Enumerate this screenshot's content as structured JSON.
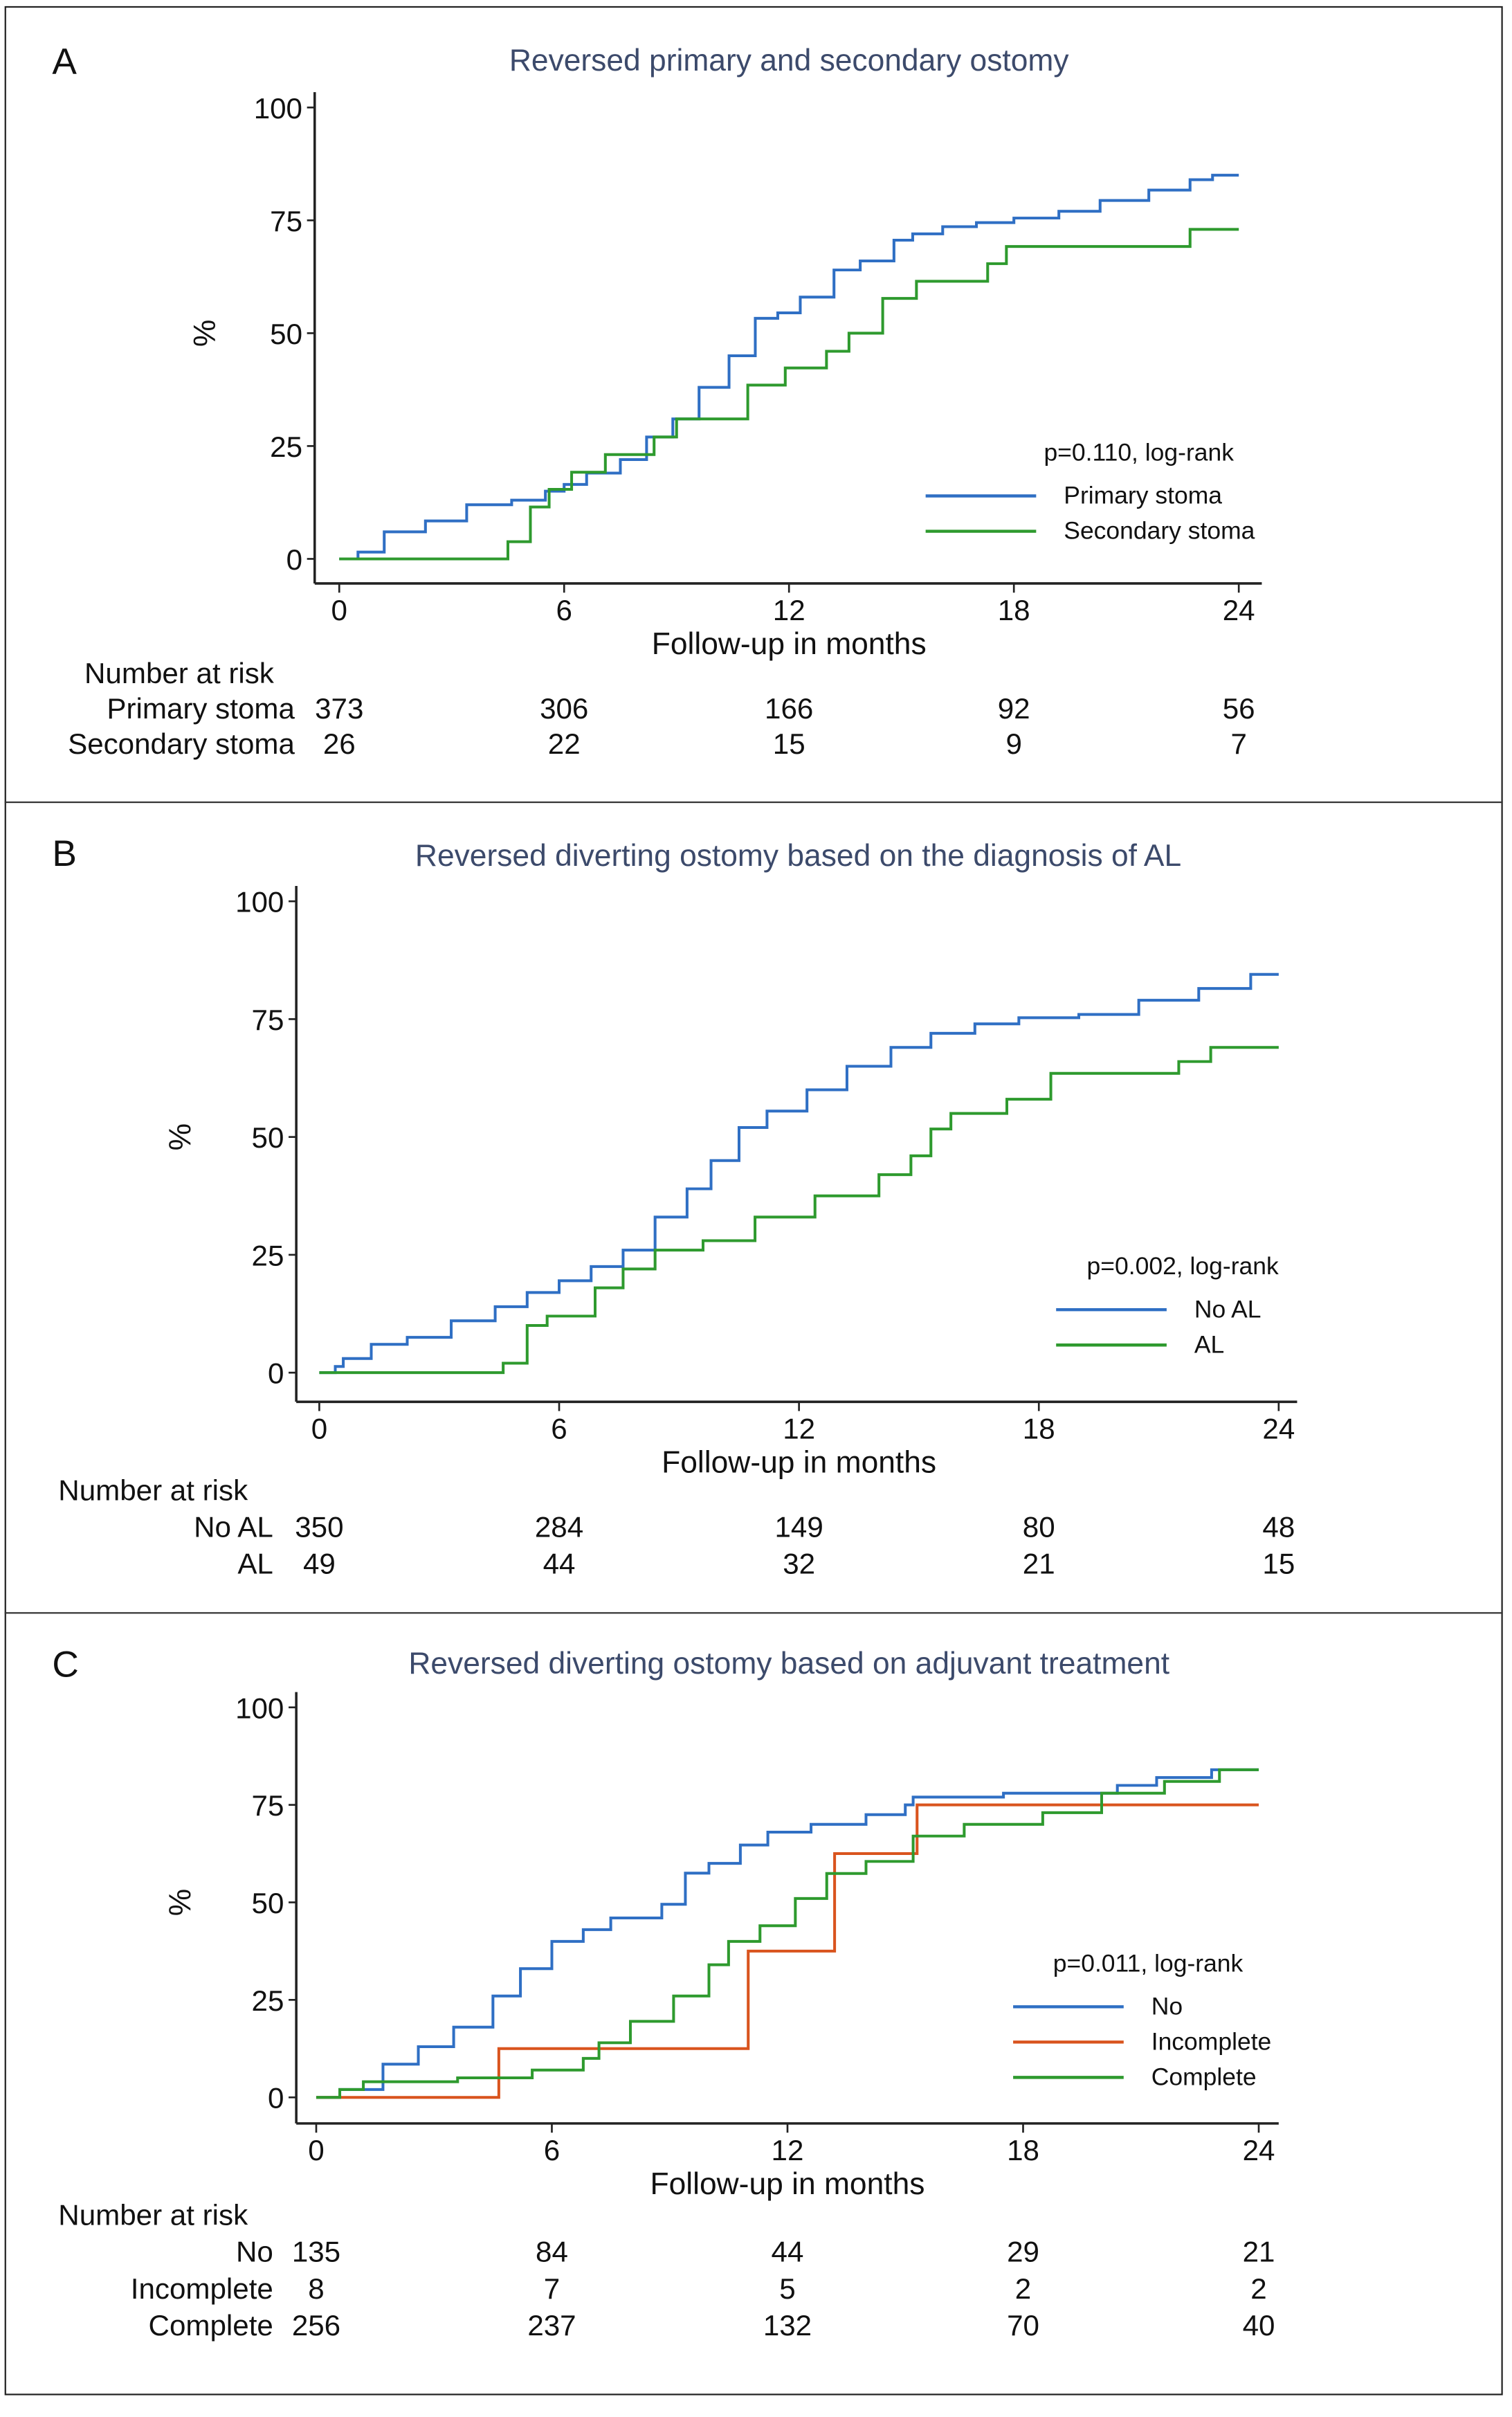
{
  "figure": {
    "panels": [
      {
        "letter": "A",
        "title": "Reversed primary and secondary ostomy",
        "ylabel": "%",
        "xlabel": "Follow-up in months",
        "pvalue": "p=0.110, log-rank",
        "risk_header": "Number at risk"
      },
      {
        "letter": "B",
        "title": "Reversed diverting ostomy based on the diagnosis of AL",
        "ylabel": "%",
        "xlabel": "Follow-up in months",
        "pvalue": "p=0.002, log-rank",
        "risk_header": "Number at risk"
      },
      {
        "letter": "C",
        "title": "Reversed diverting ostomy based on adjuvant treatment",
        "ylabel": "%",
        "xlabel": "Follow-up in months",
        "pvalue": "p=0.011, log-rank",
        "risk_header": "Number at risk"
      }
    ]
  },
  "chart_data": [
    {
      "type": "line",
      "subtype": "kaplan-meier-step",
      "title": "Reversed primary and secondary ostomy",
      "xlabel": "Follow-up in months",
      "ylabel": "%",
      "xlim": [
        0,
        24
      ],
      "ylim": [
        0,
        100
      ],
      "xticks": [
        0,
        6,
        12,
        18,
        24
      ],
      "yticks": [
        0,
        25,
        50,
        75,
        100
      ],
      "legend_position": "bottom-right",
      "annotation": "p=0.110, log-rank",
      "grid": false,
      "series": [
        {
          "name": "Primary stoma",
          "color": "#2f6fc4",
          "x": [
            0,
            0.5,
            1.2,
            2.3,
            3.4,
            4.6,
            5.5,
            6.0,
            6.6,
            7.5,
            8.2,
            8.9,
            9.6,
            10.4,
            11.1,
            11.7,
            12.3,
            13.2,
            13.9,
            14.8,
            15.3,
            16.1,
            17.0,
            18.0,
            19.2,
            20.3,
            21.6,
            22.7,
            23.3,
            24
          ],
          "y": [
            0,
            1.5,
            6,
            8.4,
            12,
            13,
            15,
            16.5,
            19,
            22,
            27,
            31,
            38,
            45,
            53.3,
            54.5,
            58,
            64,
            66,
            70.6,
            72,
            73.6,
            74.5,
            75.5,
            77,
            79.4,
            81.7,
            84,
            85,
            85
          ]
        },
        {
          "name": "Secondary stoma",
          "color": "#2e9a2e",
          "x": [
            0,
            4.5,
            5.1,
            5.6,
            6.2,
            7.1,
            8.4,
            9.0,
            10.9,
            11.9,
            13.0,
            13.6,
            14.5,
            15.4,
            17.3,
            17.8,
            22.7,
            24
          ],
          "y": [
            0,
            3.8,
            11.5,
            15.4,
            19.2,
            23.1,
            27,
            31,
            38.5,
            42.3,
            46,
            50,
            57.7,
            61.5,
            65.4,
            69.2,
            73,
            73
          ]
        }
      ],
      "risk_table": {
        "header": "Number at risk",
        "times": [
          0,
          6,
          12,
          18,
          24
        ],
        "rows": [
          {
            "label": "Primary stoma",
            "values": [
              "373",
              "306",
              "166",
              "92",
              "56"
            ]
          },
          {
            "label": "Secondary stoma",
            "values": [
              "26",
              "22",
              "15",
              "9",
              "7"
            ]
          }
        ]
      }
    },
    {
      "type": "line",
      "subtype": "kaplan-meier-step",
      "title": "Reversed diverting ostomy based on the diagnosis of AL",
      "xlabel": "Follow-up in months",
      "ylabel": "%",
      "xlim": [
        0,
        24
      ],
      "ylim": [
        0,
        100
      ],
      "xticks": [
        0,
        6,
        12,
        18,
        24
      ],
      "yticks": [
        0,
        25,
        50,
        75,
        100
      ],
      "legend_position": "bottom-right",
      "annotation": "p=0.002, log-rank",
      "grid": false,
      "series": [
        {
          "name": "No AL",
          "color": "#2f6fc4",
          "x": [
            0,
            0.4,
            0.6,
            1.3,
            2.2,
            3.3,
            4.4,
            5.2,
            6.0,
            6.8,
            7.6,
            8.4,
            9.2,
            9.8,
            10.5,
            11.2,
            12.2,
            13.2,
            14.3,
            15.3,
            16.4,
            17.5,
            19.0,
            20.5,
            22.0,
            23.3,
            24
          ],
          "y": [
            0,
            1.3,
            3,
            6,
            7.5,
            11,
            14,
            17,
            19.5,
            22.5,
            26,
            33,
            39,
            45,
            52,
            55.5,
            60,
            65,
            69,
            72,
            74,
            75.3,
            76,
            79,
            81.5,
            84.5,
            84.5
          ]
        },
        {
          "name": "AL",
          "color": "#2e9a2e",
          "x": [
            0,
            4.6,
            5.2,
            5.7,
            6.9,
            7.6,
            8.4,
            9.6,
            10.9,
            12.4,
            14.0,
            14.8,
            15.3,
            15.8,
            17.2,
            18.3,
            21.5,
            22.3,
            24
          ],
          "y": [
            0,
            2,
            10,
            12,
            18,
            22,
            26,
            28,
            33,
            37.5,
            42,
            46,
            51.7,
            55,
            58,
            63.5,
            66,
            69,
            69
          ]
        }
      ],
      "risk_table": {
        "header": "Number at risk",
        "times": [
          0,
          6,
          12,
          18,
          24
        ],
        "rows": [
          {
            "label": "No AL",
            "values": [
              "350",
              "284",
              "149",
              "80",
              "48"
            ]
          },
          {
            "label": "AL",
            "values": [
              "49",
              "44",
              "32",
              "21",
              "15"
            ]
          }
        ]
      }
    },
    {
      "type": "line",
      "subtype": "kaplan-meier-step",
      "title": "Reversed diverting ostomy based on adjuvant treatment",
      "xlabel": "Follow-up in months",
      "ylabel": "%",
      "xlim": [
        0,
        24
      ],
      "ylim": [
        0,
        100
      ],
      "xticks": [
        0,
        6,
        12,
        18,
        24
      ],
      "yticks": [
        0,
        25,
        50,
        75,
        100
      ],
      "legend_position": "bottom-right",
      "annotation": "p=0.011, log-rank",
      "grid": false,
      "series": [
        {
          "name": "No",
          "color": "#2f6fc4",
          "x": [
            0,
            0.6,
            1.7,
            2.6,
            3.5,
            4.5,
            5.2,
            6.0,
            6.8,
            7.5,
            8.8,
            9.4,
            10.0,
            10.8,
            11.5,
            12.6,
            14.0,
            15.0,
            15.2,
            17.5,
            20.4,
            21.4,
            22.8,
            24
          ],
          "y": [
            0,
            2,
            8.5,
            13,
            18,
            26,
            33,
            40,
            43,
            46,
            49.5,
            57.5,
            60,
            64.7,
            68,
            70,
            72.5,
            75,
            77,
            78,
            80,
            82,
            84,
            84
          ]
        },
        {
          "name": "Incomplete",
          "color": "#d9541e",
          "x": [
            0,
            4.65,
            11.0,
            13.2,
            15.3,
            24
          ],
          "y": [
            0,
            12.5,
            37.5,
            62.5,
            75,
            75
          ]
        },
        {
          "name": "Complete",
          "color": "#2e9a2e",
          "x": [
            0,
            0.6,
            1.2,
            3.6,
            5.5,
            6.8,
            7.2,
            8.0,
            9.1,
            10.0,
            10.5,
            11.3,
            12.2,
            13.0,
            14.0,
            15.2,
            16.5,
            18.5,
            20.0,
            21.6,
            23.0,
            24
          ],
          "y": [
            0,
            2,
            4,
            5,
            7,
            10,
            14,
            19.5,
            26,
            34,
            40,
            44,
            51,
            57.4,
            60.5,
            67,
            70,
            73,
            78,
            81,
            84,
            84
          ]
        }
      ],
      "risk_table": {
        "header": "Number at risk",
        "times": [
          0,
          6,
          12,
          18,
          24
        ],
        "rows": [
          {
            "label": "No",
            "values": [
              "135",
              "84",
              "44",
              "29",
              "21"
            ]
          },
          {
            "label": "Incomplete",
            "values": [
              "8",
              "7",
              "5",
              "2",
              "2"
            ]
          },
          {
            "label": "Complete",
            "values": [
              "256",
              "237",
              "132",
              "70",
              "40"
            ]
          }
        ]
      }
    }
  ]
}
